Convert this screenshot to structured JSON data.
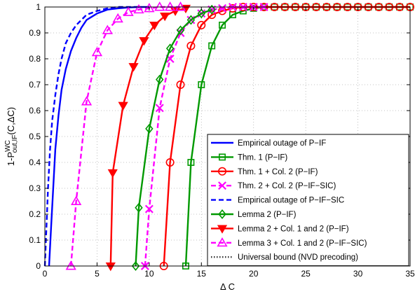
{
  "chart_data": {
    "type": "line",
    "xlabel": "Δ C",
    "ylabel": {
      "main": "1-P",
      "sup": "WC",
      "sub": "out,IF",
      "tail": "(C,ΔC)"
    },
    "xlim": [
      0,
      35
    ],
    "ylim": [
      0,
      1
    ],
    "xticks": [
      0,
      5,
      10,
      15,
      20,
      25,
      30,
      35
    ],
    "yticks": [
      0,
      0.1,
      0.2,
      0.3,
      0.4,
      0.5,
      0.6,
      0.7,
      0.8,
      0.9,
      1
    ],
    "grid": true,
    "legend_position": "bottom-right",
    "series": [
      {
        "name": "Empirical outage of P−IF",
        "color": "#0000ff",
        "dash": "solid",
        "marker": "none",
        "x": [
          0.4,
          0.6,
          0.8,
          1.0,
          1.3,
          1.6,
          2.0,
          2.5,
          3.0,
          3.5,
          4.0,
          5.0,
          6.0,
          7.0,
          8.0,
          9.0,
          10.0
        ],
        "y": [
          0.0,
          0.15,
          0.3,
          0.45,
          0.58,
          0.68,
          0.76,
          0.83,
          0.88,
          0.92,
          0.95,
          0.975,
          0.99,
          0.995,
          0.998,
          1.0,
          1.0
        ]
      },
      {
        "name": "Thm. 1 (P−IF)",
        "color": "#009900",
        "dash": "solid",
        "marker": "square",
        "x": [
          13.5,
          14,
          15,
          16,
          17,
          18,
          19,
          20,
          21,
          22,
          23,
          24,
          25,
          26,
          27,
          28,
          29,
          30,
          31,
          32,
          33,
          34,
          35
        ],
        "y": [
          0.0,
          0.4,
          0.7,
          0.85,
          0.93,
          0.97,
          0.985,
          0.995,
          1,
          1,
          1,
          1,
          1,
          1,
          1,
          1,
          1,
          1,
          1,
          1,
          1,
          1,
          1
        ]
      },
      {
        "name": "Thm. 1 + Col. 2 (P−IF)",
        "color": "#ff0000",
        "dash": "solid",
        "marker": "circle",
        "x": [
          11.4,
          12,
          13,
          14,
          15,
          16,
          17,
          18,
          19,
          20,
          21,
          22,
          23,
          24,
          25,
          26,
          27,
          28,
          29,
          30,
          31,
          32,
          33,
          34,
          35
        ],
        "y": [
          0.0,
          0.4,
          0.7,
          0.85,
          0.93,
          0.97,
          0.985,
          0.995,
          1,
          1,
          1,
          1,
          1,
          1,
          1,
          1,
          1,
          1,
          1,
          1,
          1,
          1,
          1,
          1,
          1
        ]
      },
      {
        "name": "Thm. 2 + Col. 2 (P−IF−SIC)",
        "color": "#ff00ff",
        "dash": "dashed",
        "marker": "x",
        "x": [
          9.6,
          10,
          11,
          12,
          13,
          14,
          15,
          16,
          17,
          18,
          19,
          20,
          21
        ],
        "y": [
          0.0,
          0.22,
          0.61,
          0.8,
          0.9,
          0.95,
          0.975,
          0.99,
          0.995,
          1,
          1,
          1,
          1
        ]
      },
      {
        "name": "Empirical outage of P−IF−SIC",
        "color": "#0000ff",
        "dash": "dashed",
        "marker": "none",
        "x": [
          0.0,
          0.1,
          0.3,
          0.5,
          0.7,
          1.0,
          1.3,
          1.6,
          2.0,
          2.5,
          3.0,
          3.5,
          4.0,
          5.0,
          6.0,
          7.0,
          8.0,
          9.0
        ],
        "y": [
          0.0,
          0.1,
          0.3,
          0.45,
          0.56,
          0.66,
          0.74,
          0.8,
          0.86,
          0.9,
          0.93,
          0.95,
          0.97,
          0.985,
          0.995,
          1.0,
          1.0,
          1.0
        ]
      },
      {
        "name": "Lemma 2 (P−IF)",
        "color": "#009900",
        "dash": "solid",
        "marker": "diamond",
        "x": [
          8.7,
          9,
          10,
          11,
          12,
          13,
          14,
          15,
          16
        ],
        "y": [
          0.0,
          0.225,
          0.53,
          0.72,
          0.84,
          0.91,
          0.95,
          0.975,
          0.99
        ]
      },
      {
        "name": "Lemma 2 + Col. 1 and 2 (P−IF)",
        "color": "#ff0000",
        "dash": "solid",
        "marker": "triangle-down",
        "x": [
          6.3,
          6.5,
          7.5,
          8.5,
          9.5,
          10.5,
          11.5,
          12.5,
          13.5
        ],
        "y": [
          0.0,
          0.36,
          0.62,
          0.77,
          0.87,
          0.93,
          0.965,
          0.985,
          0.995
        ]
      },
      {
        "name": "Lemma 3 + Col. 1 and 2 (P−IF−SIC)",
        "color": "#ff00ff",
        "dash": "dashed",
        "marker": "triangle-up",
        "x": [
          2.5,
          3,
          4,
          5,
          6,
          7,
          8,
          9,
          10,
          11,
          12,
          13
        ],
        "y": [
          0.0,
          0.25,
          0.635,
          0.825,
          0.91,
          0.955,
          0.98,
          0.99,
          0.995,
          1,
          1,
          1
        ]
      },
      {
        "name": "Universal bound (NVD precoding)",
        "color": "#333333",
        "dash": "dotted",
        "marker": "none",
        "x": [],
        "y": []
      }
    ]
  }
}
